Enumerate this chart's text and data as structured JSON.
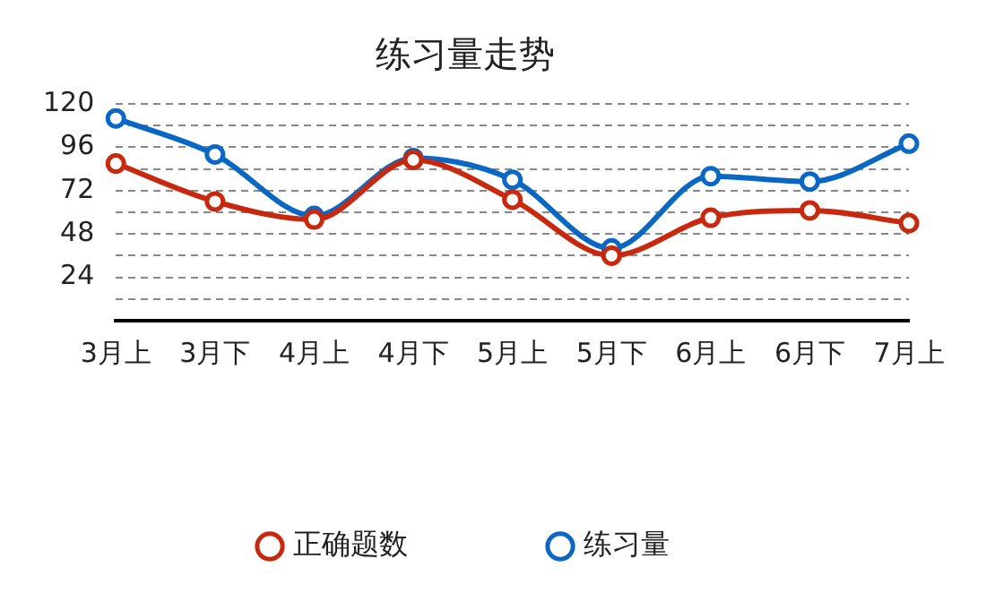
{
  "chart_data": {
    "type": "line",
    "title": "练习量走势",
    "categories": [
      "3月上",
      "3月下",
      "4月上",
      "4月下",
      "5月上",
      "5月下",
      "6月上",
      "6月下",
      "7月上"
    ],
    "series": [
      {
        "name": "正确题数",
        "color": "#c8290e",
        "values": [
          87,
          66,
          56,
          89,
          67,
          36,
          57,
          61,
          54
        ]
      },
      {
        "name": "练习量",
        "color": "#0a68c4",
        "values": [
          112,
          92,
          58,
          90,
          78,
          40,
          80,
          77,
          98
        ]
      }
    ],
    "ylim": [
      0,
      120
    ],
    "yticks": [
      {
        "value": 0,
        "label": null
      },
      {
        "value": 12,
        "label": null
      },
      24,
      {
        "value": 36,
        "label": null
      },
      48,
      {
        "value": 60,
        "label": null
      },
      72,
      {
        "value": 84,
        "label": null
      },
      96,
      {
        "value": 108,
        "label": null
      },
      120
    ],
    "grid": "y",
    "legend": "bottom",
    "marker": "circle",
    "line_style": "solid"
  }
}
